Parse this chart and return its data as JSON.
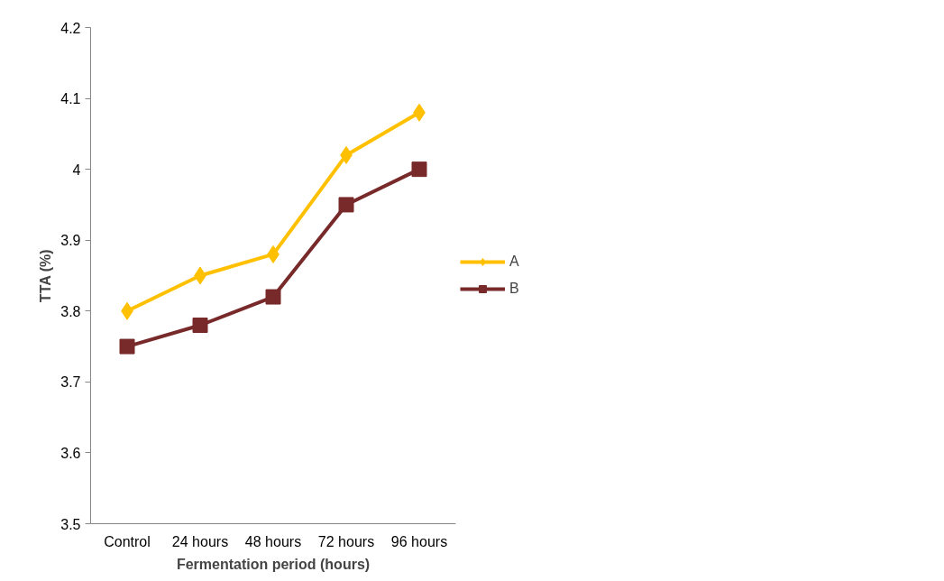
{
  "chart_data": {
    "type": "line",
    "xlabel": "Fermentation period (hours)",
    "ylabel": "TTA (%)",
    "categories": [
      "Control",
      "24 hours",
      "48 hours",
      "72 hours",
      "96 hours"
    ],
    "series": [
      {
        "name": "A",
        "color": "#ffc000",
        "marker": "diamond",
        "values": [
          3.8,
          3.85,
          3.88,
          4.02,
          4.08
        ]
      },
      {
        "name": "B",
        "color": "#782a2a",
        "marker": "square",
        "values": [
          3.75,
          3.78,
          3.82,
          3.95,
          4.0
        ]
      }
    ],
    "ylim": [
      3.5,
      4.2
    ],
    "yticks": [
      {
        "value": 3.5,
        "label": "3.5"
      },
      {
        "value": 3.6,
        "label": "3.6"
      },
      {
        "value": 3.7,
        "label": "3.7"
      },
      {
        "value": 3.8,
        "label": "3.8"
      },
      {
        "value": 3.9,
        "label": "3.9"
      },
      {
        "value": 4,
        "label": "4"
      },
      {
        "value": 4.1,
        "label": "4.1"
      },
      {
        "value": 4.2,
        "label": "4.2"
      }
    ],
    "grid": false,
    "legend": "right",
    "line_style": "solid"
  }
}
